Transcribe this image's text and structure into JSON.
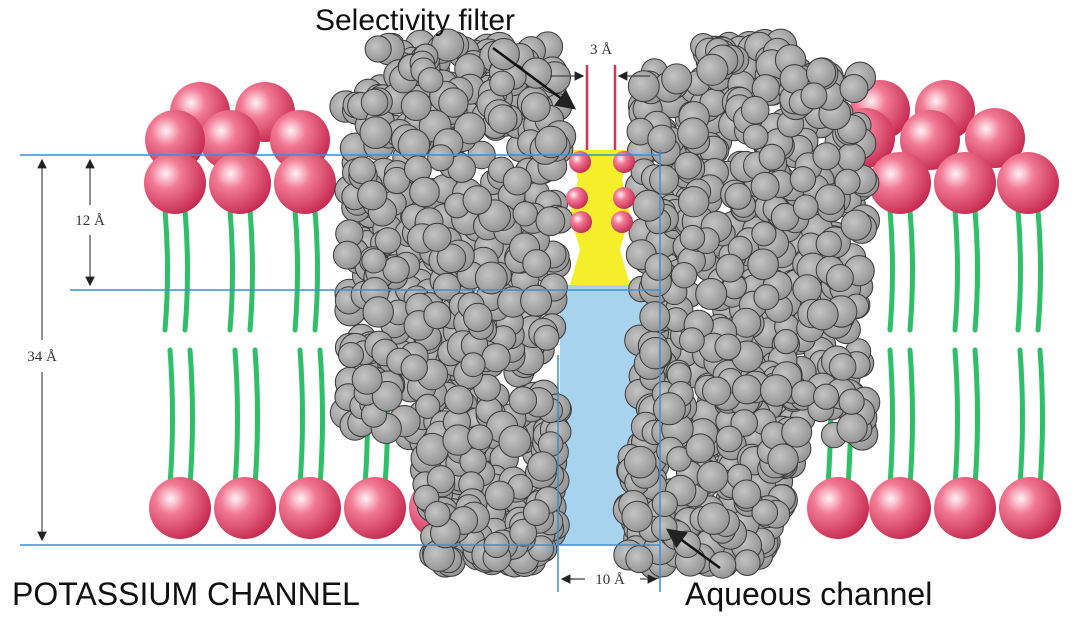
{
  "labels": {
    "selectivity_filter": "Selectivity filter",
    "filter_width": "3 Å",
    "filter_length": "12 Å",
    "membrane_thickness": "34 Å",
    "channel_width": "10 Å",
    "title": "POTASSIUM CHANNEL",
    "aqueous_channel": "Aqueous channel"
  }
}
